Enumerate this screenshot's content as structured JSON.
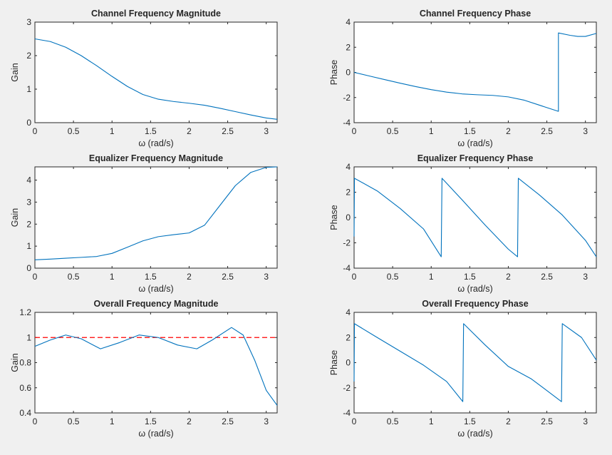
{
  "figure": {
    "background": "#f0f0f0",
    "line_color": "#0072bd",
    "ref_line_color": "#ff0000"
  },
  "chart_data": [
    {
      "type": "line",
      "title": "Channel Frequency Magnitude",
      "xlabel": "ω (rad/s)",
      "ylabel": "Gain",
      "xlim": [
        0,
        3.1416
      ],
      "ylim": [
        0,
        3
      ],
      "xticks": [
        "0",
        "0.5",
        "1",
        "1.5",
        "2",
        "2.5",
        "3"
      ],
      "yticks": [
        "0",
        "1",
        "2",
        "3"
      ],
      "series": [
        {
          "x": [
            0,
            0.2,
            0.4,
            0.6,
            0.8,
            1.0,
            1.2,
            1.4,
            1.6,
            1.8,
            2.0,
            2.2,
            2.4,
            2.6,
            2.8,
            3.0,
            3.1416
          ],
          "y": [
            2.5,
            2.42,
            2.25,
            2.0,
            1.7,
            1.38,
            1.08,
            0.84,
            0.7,
            0.63,
            0.58,
            0.52,
            0.43,
            0.33,
            0.23,
            0.14,
            0.1
          ]
        }
      ]
    },
    {
      "type": "line",
      "title": "Channel Frequency Phase",
      "xlabel": "ω (rad/s)",
      "ylabel": "Phase",
      "xlim": [
        0,
        3.1416
      ],
      "ylim": [
        -4,
        4
      ],
      "xticks": [
        "0",
        "0.5",
        "1",
        "1.5",
        "2",
        "2.5",
        "3"
      ],
      "yticks": [
        "-4",
        "-2",
        "0",
        "2",
        "4"
      ],
      "series": [
        {
          "x": [
            0,
            0.2,
            0.4,
            0.6,
            0.8,
            1.0,
            1.2,
            1.4,
            1.6,
            1.8,
            2.0,
            2.2,
            2.4,
            2.55,
            2.65,
            2.65,
            2.8,
            2.9,
            3.0,
            3.1416
          ],
          "y": [
            0,
            -0.29,
            -0.58,
            -0.86,
            -1.13,
            -1.37,
            -1.57,
            -1.71,
            -1.78,
            -1.83,
            -1.95,
            -2.2,
            -2.6,
            -2.9,
            -3.1,
            3.14,
            2.95,
            2.86,
            2.86,
            3.1
          ]
        }
      ]
    },
    {
      "type": "line",
      "title": "Equalizer Frequency Magnitude",
      "xlabel": "ω (rad/s)",
      "ylabel": "Gain",
      "xlim": [
        0,
        3.1416
      ],
      "ylim": [
        0,
        4.6
      ],
      "xticks": [
        "0",
        "0.5",
        "1",
        "1.5",
        "2",
        "2.5",
        "3"
      ],
      "yticks": [
        "0",
        "1",
        "2",
        "3",
        "4"
      ],
      "series": [
        {
          "x": [
            0,
            0.2,
            0.4,
            0.6,
            0.8,
            1.0,
            1.2,
            1.4,
            1.6,
            1.8,
            2.0,
            2.2,
            2.4,
            2.6,
            2.8,
            3.0,
            3.1416
          ],
          "y": [
            0.38,
            0.41,
            0.45,
            0.49,
            0.53,
            0.67,
            0.95,
            1.24,
            1.43,
            1.52,
            1.6,
            1.95,
            2.85,
            3.75,
            4.35,
            4.58,
            4.6
          ]
        }
      ]
    },
    {
      "type": "line",
      "title": "Equalizer Frequency Phase",
      "xlabel": "ω (rad/s)",
      "ylabel": "Phase",
      "xlim": [
        0,
        3.1416
      ],
      "ylim": [
        -4,
        4
      ],
      "xticks": [
        "0",
        "0.5",
        "1",
        "1.5",
        "2",
        "2.5",
        "3"
      ],
      "yticks": [
        "-4",
        "-2",
        "0",
        "2",
        "4"
      ],
      "series": [
        {
          "x": [
            0,
            0.005,
            0.3,
            0.6,
            0.9,
            1.13,
            1.14,
            1.4,
            1.7,
            2.0,
            2.12,
            2.13,
            2.4,
            2.7,
            3.0,
            3.1416
          ],
          "y": [
            -1.5,
            3.1,
            2.1,
            0.7,
            -0.9,
            -3.1,
            3.1,
            1.4,
            -0.6,
            -2.5,
            -3.1,
            3.1,
            1.8,
            0.2,
            -1.8,
            -3.1
          ]
        }
      ]
    },
    {
      "type": "line",
      "title": "Overall Frequency Magnitude",
      "xlabel": "ω (rad/s)",
      "ylabel": "Gain",
      "xlim": [
        0,
        3.1416
      ],
      "ylim": [
        0.4,
        1.2
      ],
      "xticks": [
        "0",
        "0.5",
        "1",
        "1.5",
        "2",
        "2.5",
        "3"
      ],
      "yticks": [
        "0.4",
        "0.6",
        "0.8",
        "1",
        "1.2"
      ],
      "reference_line": {
        "y": 1,
        "style": "dashed"
      },
      "series": [
        {
          "x": [
            0,
            0.2,
            0.4,
            0.6,
            0.85,
            1.1,
            1.35,
            1.6,
            1.85,
            2.1,
            2.3,
            2.55,
            2.7,
            2.85,
            3.0,
            3.1416
          ],
          "y": [
            0.93,
            0.98,
            1.02,
            0.99,
            0.91,
            0.96,
            1.02,
            1.0,
            0.94,
            0.91,
            0.98,
            1.08,
            1.02,
            0.82,
            0.58,
            0.46
          ]
        }
      ]
    },
    {
      "type": "line",
      "title": "Overall Frequency Phase",
      "xlabel": "ω (rad/s)",
      "ylabel": "Phase",
      "xlim": [
        0,
        3.1416
      ],
      "ylim": [
        -4,
        4
      ],
      "xticks": [
        "0",
        "0.5",
        "1",
        "1.5",
        "2",
        "2.5",
        "3"
      ],
      "yticks": [
        "-4",
        "-2",
        "0",
        "2",
        "4"
      ],
      "series": [
        {
          "x": [
            0,
            0.005,
            0.3,
            0.6,
            0.9,
            1.2,
            1.41,
            1.42,
            1.7,
            2.0,
            2.3,
            2.69,
            2.7,
            2.95,
            3.1416
          ],
          "y": [
            -1.5,
            3.1,
            2.0,
            0.9,
            -0.2,
            -1.5,
            -3.1,
            3.1,
            1.4,
            -0.3,
            -1.3,
            -3.1,
            3.1,
            2.0,
            0.2
          ]
        }
      ]
    }
  ]
}
